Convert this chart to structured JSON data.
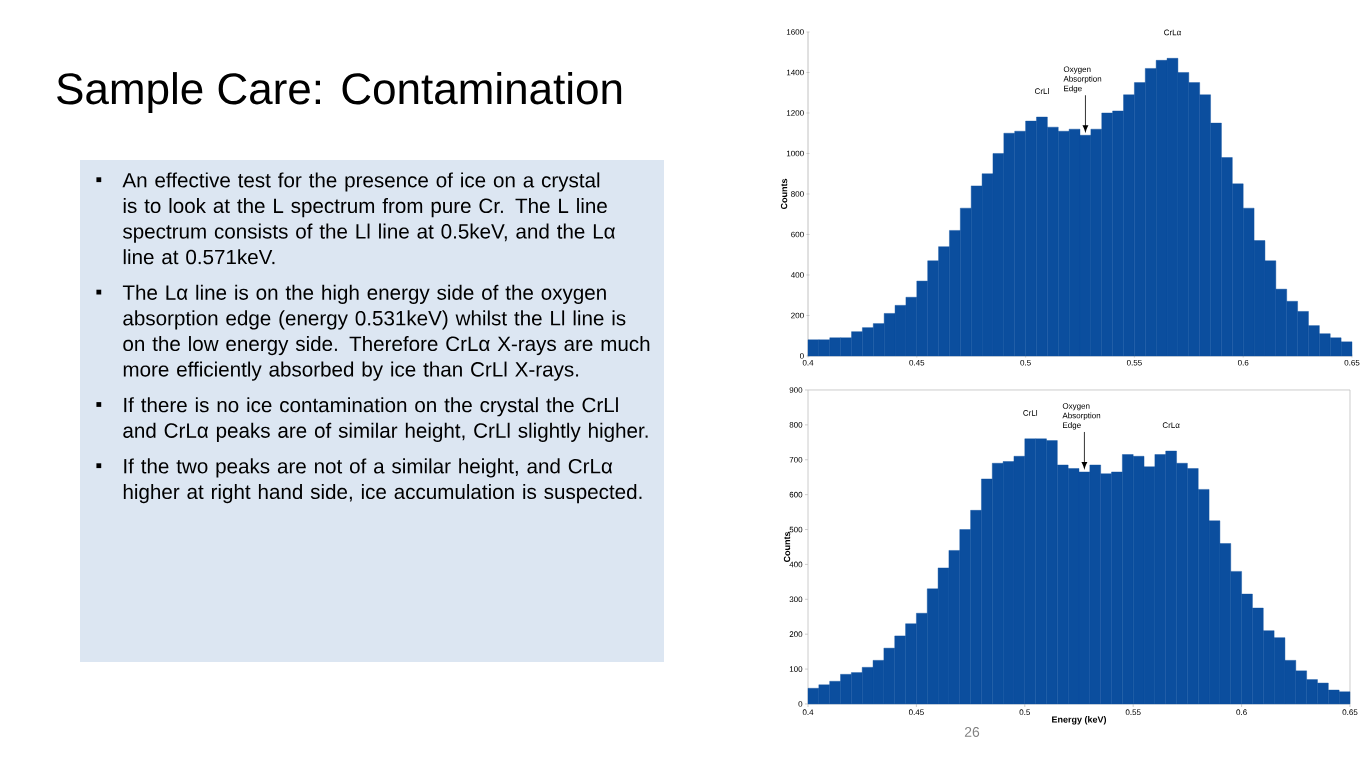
{
  "chart_data": [
    {
      "type": "other",
      "title": "Sample Care: Contamination",
      "annotations": [
        "An effective test for the presence of ice on a crystal is to look at the L spectrum from pure Cr. The L line spectrum consists of the Ll line at 0.5keV, and the Lα line at 0.571keV.",
        "The Lα line is on the high energy side of the oxygen absorption edge (energy 0.531keV) whilst the Ll line is on the low energy side. Therefore CrLα X-rays are much more efficiently absorbed by ice than CrLl X-rays.",
        "If there is no ice contamination on the crystal the CrLl and CrLα peaks are of similar height, CrLl slightly higher.",
        "If the two peaks are not of a similar height, and CrLα higher at right hand side, ice accumulation is suspected.",
        "26"
      ]
    },
    {
      "type": "histogram",
      "ylabel": "Counts",
      "color": "#0b4e9e",
      "bins": [
        0.4,
        0.405,
        0.41,
        0.415,
        0.42,
        0.425,
        0.43,
        0.435,
        0.44,
        0.445,
        0.45,
        0.455,
        0.46,
        0.465,
        0.47,
        0.475,
        0.48,
        0.485,
        0.49,
        0.495,
        0.5,
        0.505,
        0.51,
        0.515,
        0.52,
        0.525,
        0.53,
        0.535,
        0.54,
        0.545,
        0.55,
        0.555,
        0.56,
        0.565,
        0.57,
        0.575,
        0.58,
        0.585,
        0.59,
        0.595,
        0.6,
        0.605,
        0.61,
        0.615,
        0.62,
        0.625,
        0.63,
        0.635,
        0.64,
        0.645,
        0.65
      ],
      "values": [
        80,
        80,
        90,
        90,
        120,
        140,
        160,
        210,
        250,
        290,
        370,
        470,
        540,
        620,
        730,
        840,
        900,
        1000,
        1100,
        1110,
        1160,
        1180,
        1130,
        1110,
        1120,
        1090,
        1120,
        1200,
        1210,
        1290,
        1350,
        1420,
        1460,
        1470,
        1400,
        1350,
        1290,
        1150,
        980,
        850,
        730,
        570,
        470,
        330,
        270,
        220,
        150,
        110,
        90,
        70
      ],
      "xlim": [
        0.4,
        0.65
      ],
      "xticks": [
        0.4,
        0.45,
        0.5,
        0.55,
        0.6,
        0.65
      ],
      "ylim": [
        0,
        1600
      ],
      "yticks": [
        0,
        200,
        400,
        600,
        800,
        1000,
        1200,
        1400,
        1600
      ],
      "annotations": [
        {
          "text": "CrLl",
          "x": 0.5075,
          "y": 1180
        },
        {
          "text": "Oxygen Absorption Edge",
          "x": 0.5275,
          "y": 1090
        },
        {
          "text": "CrLα",
          "x": 0.5675,
          "y": 1470
        }
      ]
    },
    {
      "type": "histogram",
      "ylabel": "Counts",
      "xlabel": "Energy (keV)",
      "color": "#0b4e9e",
      "bins": [
        0.4,
        0.405,
        0.41,
        0.415,
        0.42,
        0.425,
        0.43,
        0.435,
        0.44,
        0.445,
        0.45,
        0.455,
        0.46,
        0.465,
        0.47,
        0.475,
        0.48,
        0.485,
        0.49,
        0.495,
        0.5,
        0.505,
        0.51,
        0.515,
        0.52,
        0.525,
        0.53,
        0.535,
        0.54,
        0.545,
        0.55,
        0.555,
        0.56,
        0.565,
        0.57,
        0.575,
        0.58,
        0.585,
        0.59,
        0.595,
        0.6,
        0.605,
        0.61,
        0.615,
        0.62,
        0.625,
        0.63,
        0.635,
        0.64,
        0.645,
        0.65
      ],
      "values": [
        45,
        55,
        65,
        85,
        90,
        105,
        125,
        160,
        195,
        230,
        260,
        330,
        390,
        440,
        500,
        555,
        645,
        690,
        695,
        710,
        760,
        760,
        755,
        685,
        675,
        665,
        685,
        660,
        665,
        715,
        710,
        680,
        715,
        725,
        690,
        675,
        615,
        525,
        460,
        380,
        315,
        275,
        210,
        190,
        125,
        95,
        70,
        60,
        40,
        35
      ],
      "xlim": [
        0.4,
        0.65
      ],
      "xticks": [
        0.4,
        0.45,
        0.5,
        0.55,
        0.6,
        0.65
      ],
      "ylim": [
        0,
        900
      ],
      "yticks": [
        0,
        100,
        200,
        300,
        400,
        500,
        600,
        700,
        800,
        900
      ],
      "annotations": [
        {
          "text": "CrLl",
          "x": 0.5025,
          "y": 760
        },
        {
          "text": "Oxygen Absorption Edge",
          "x": 0.5275,
          "y": 665
        },
        {
          "text": "CrLα",
          "x": 0.5675,
          "y": 725
        }
      ]
    }
  ]
}
